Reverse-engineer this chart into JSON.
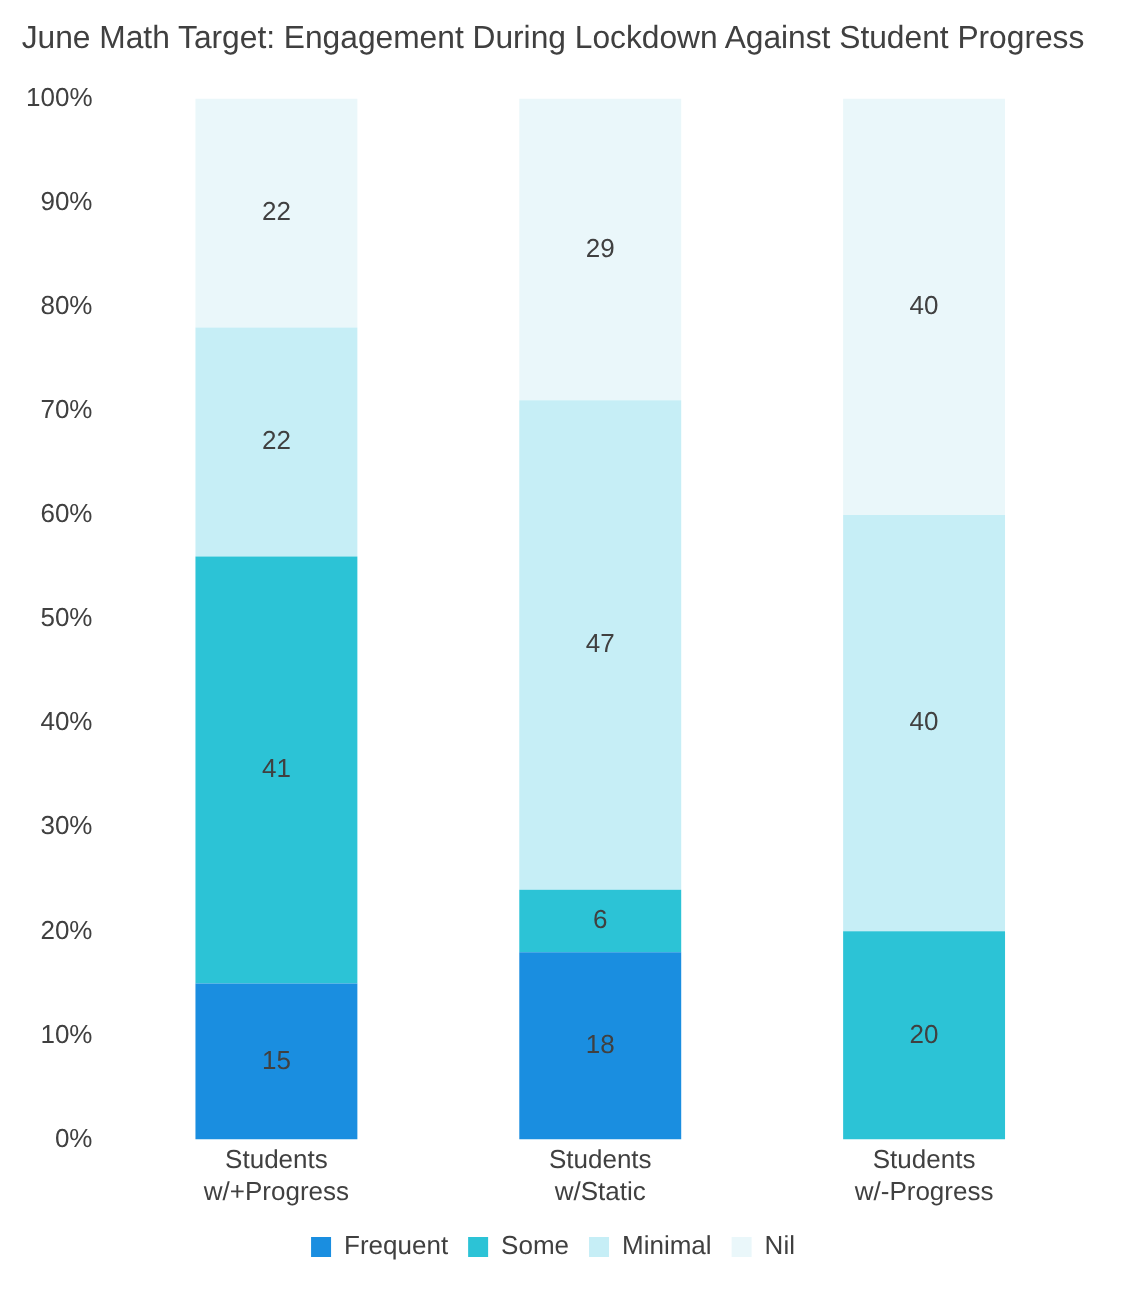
{
  "chart_data": {
    "type": "bar",
    "title": "June Math Target: Engagement During Lockdown Against Student Progress",
    "categories": [
      "Students w/+Progress",
      "Students w/Static",
      "Students w/-Progress"
    ],
    "stacked": true,
    "ylim": [
      0,
      100
    ],
    "yticks": [
      {
        "value": 0,
        "label": "0%"
      },
      {
        "value": 10,
        "label": "10%"
      },
      {
        "value": 20,
        "label": "20%"
      },
      {
        "value": 30,
        "label": "30%"
      },
      {
        "value": 40,
        "label": "40%"
      },
      {
        "value": 50,
        "label": "50%"
      },
      {
        "value": 60,
        "label": "60%"
      },
      {
        "value": 70,
        "label": "70%"
      },
      {
        "value": 80,
        "label": "80%"
      },
      {
        "value": 90,
        "label": "90%"
      },
      {
        "value": 100,
        "label": "100%"
      }
    ],
    "grid": false,
    "legend": "bottom",
    "series": [
      {
        "name": "Frequent",
        "color": "#1a8ee0",
        "values": [
          15,
          18,
          0
        ],
        "value_labels": [
          "15",
          "18",
          null
        ]
      },
      {
        "name": "Some",
        "color": "#2cc3d6",
        "values": [
          41,
          6,
          20
        ],
        "value_labels": [
          "41",
          "6",
          "20"
        ]
      },
      {
        "name": "Minimal",
        "color": "#c6eef6",
        "values": [
          22,
          47,
          40
        ],
        "value_labels": [
          "22",
          "47",
          "40"
        ]
      },
      {
        "name": "Nil",
        "color": "#eaf7fa",
        "values": [
          22,
          29,
          40
        ],
        "value_labels": [
          "22",
          "29",
          "40"
        ]
      }
    ]
  }
}
